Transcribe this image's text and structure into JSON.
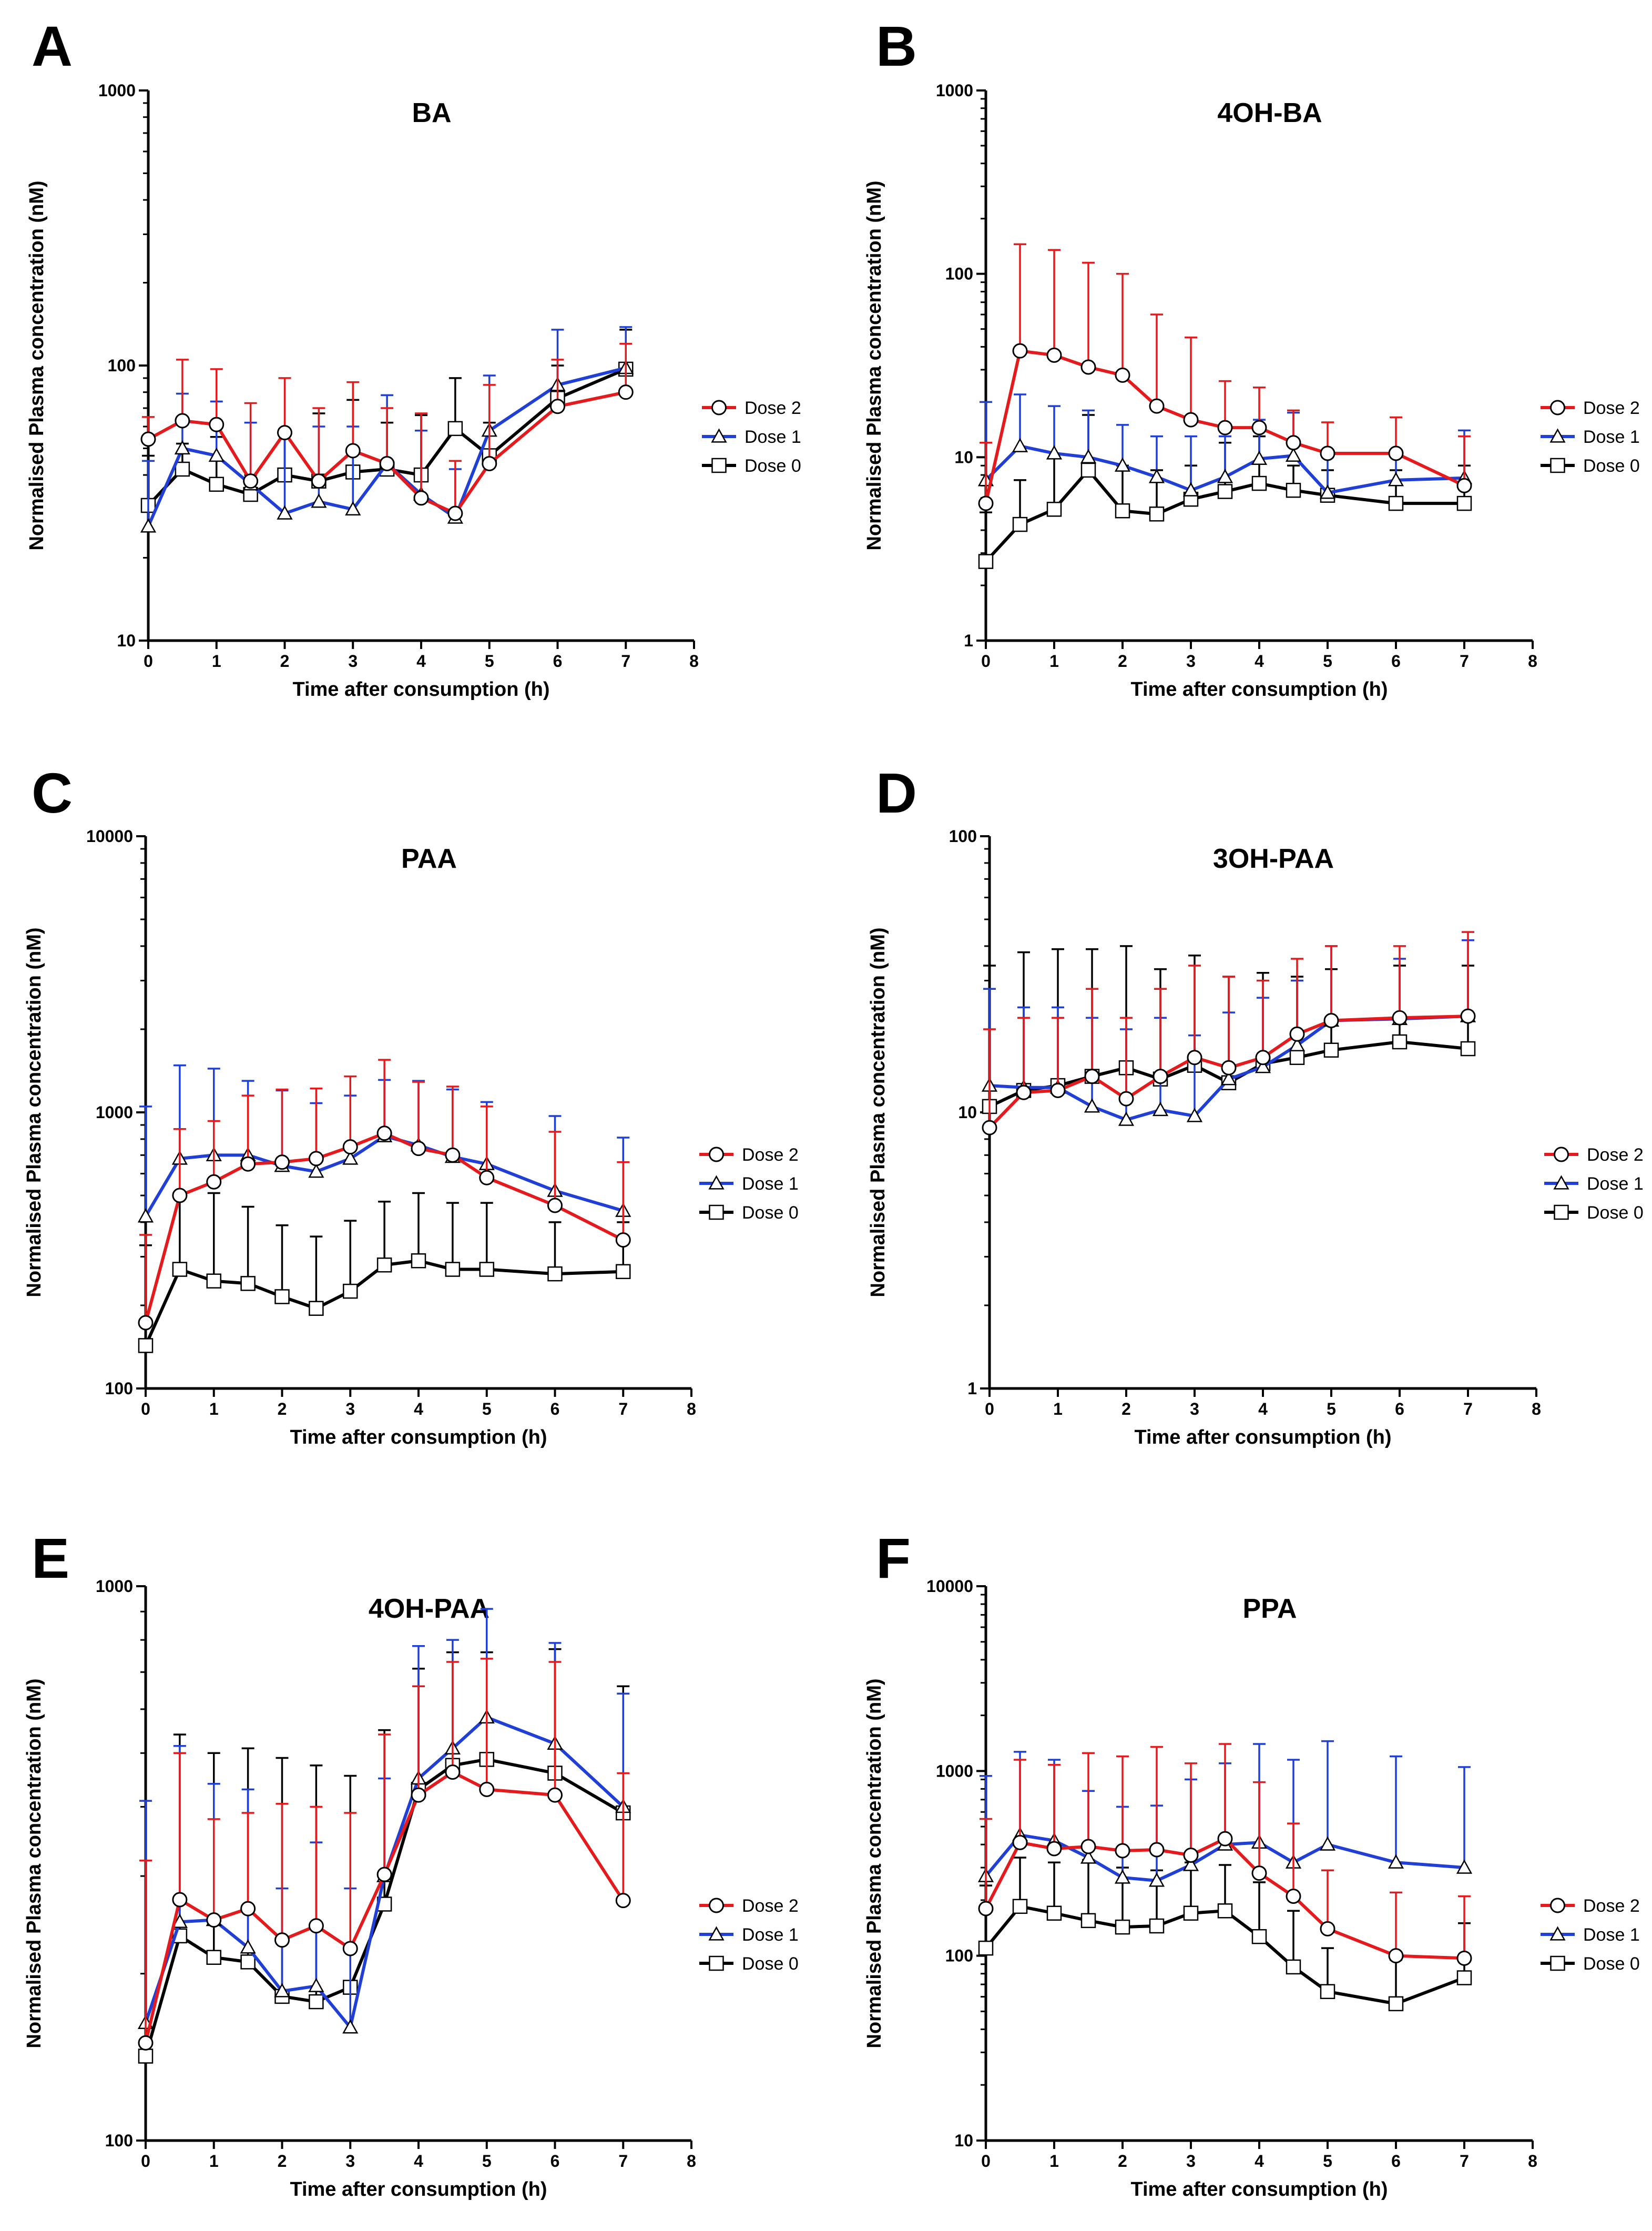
{
  "figure": {
    "legend_labels": [
      "Dose 2",
      "Dose 1",
      "Dose 0"
    ]
  },
  "chart_data": [
    {
      "panel": "A",
      "type": "line",
      "title": "BA",
      "xlabel": "Time after consumption (h)",
      "ylabel": "Normalised Plasma concentration (nM)",
      "xlim": [
        0,
        8
      ],
      "ylim": [
        10,
        1000
      ],
      "yscale": "log",
      "xticks": [
        0,
        1,
        2,
        3,
        4,
        5,
        6,
        7,
        8
      ],
      "yticks": [
        10,
        100,
        1000
      ],
      "yticklabels": [
        "10",
        "100",
        "1000"
      ],
      "legend": "right",
      "series": [
        {
          "name": "Dose 2",
          "color": "#e41a1c",
          "marker": "circle",
          "x": [
            0,
            0.5,
            1,
            1.5,
            2,
            2.5,
            3,
            3.5,
            4,
            4.5,
            5,
            6,
            7
          ],
          "y": [
            54,
            63,
            61,
            38,
            57,
            38,
            49,
            44,
            33,
            29,
            44,
            71,
            80
          ],
          "err": [
            65,
            105,
            97,
            73,
            90,
            70,
            87,
            70,
            67,
            45,
            85,
            105,
            120
          ]
        },
        {
          "name": "Dose 1",
          "color": "#1f3fd6",
          "marker": "triangle",
          "x": [
            0,
            0.5,
            1,
            1.5,
            2,
            2.5,
            3,
            3.5,
            4,
            4.5,
            5,
            6,
            7
          ],
          "y": [
            26,
            50,
            47,
            37,
            29,
            32,
            30,
            44,
            34,
            28,
            58,
            85,
            98
          ],
          "err": [
            45,
            79,
            74,
            62,
            58,
            60,
            60,
            78,
            58,
            42,
            92,
            135,
            138
          ]
        },
        {
          "name": "Dose 0",
          "color": "#000000",
          "marker": "square",
          "x": [
            0,
            0.5,
            1,
            1.5,
            2,
            2.5,
            3,
            3.5,
            4,
            4.5,
            5,
            6,
            7
          ],
          "y": [
            31,
            42,
            37,
            34,
            40,
            38,
            41,
            42,
            40,
            59,
            47,
            76,
            97
          ],
          "err": [
            47,
            52,
            55,
            40,
            58,
            67,
            75,
            62,
            66,
            90,
            62,
            100,
            135
          ]
        }
      ]
    },
    {
      "panel": "B",
      "type": "line",
      "title": "4OH-BA",
      "xlabel": "Time after consumption (h)",
      "ylabel": "Normalised Plasma concentration (nM)",
      "xlim": [
        0,
        8
      ],
      "ylim": [
        1,
        1000
      ],
      "yscale": "log",
      "xticks": [
        0,
        1,
        2,
        3,
        4,
        5,
        6,
        7,
        8
      ],
      "yticks": [
        1,
        10,
        100,
        1000
      ],
      "yticklabels": [
        "1",
        "10",
        "100",
        "1000"
      ],
      "legend": "right",
      "series": [
        {
          "name": "Dose 2",
          "color": "#e41a1c",
          "marker": "circle",
          "x": [
            0,
            0.5,
            1,
            1.5,
            2,
            2.5,
            3,
            3.5,
            4,
            4.5,
            5,
            6,
            7
          ],
          "y": [
            5.6,
            38,
            36,
            31,
            28,
            19,
            16,
            14.5,
            14.5,
            12,
            10.5,
            10.5,
            7
          ],
          "err": [
            12,
            145,
            135,
            115,
            100,
            60,
            45,
            26,
            24,
            18,
            15.5,
            16.5,
            13
          ]
        },
        {
          "name": "Dose 1",
          "color": "#1f3fd6",
          "marker": "triangle",
          "x": [
            0,
            0.5,
            1,
            1.5,
            2,
            2.5,
            3,
            3.5,
            4,
            4.5,
            5,
            6,
            7
          ],
          "y": [
            7.5,
            11.5,
            10.5,
            10,
            9,
            7.8,
            6.6,
            7.8,
            9.8,
            10.2,
            6.4,
            7.5,
            7.7
          ],
          "err": [
            20,
            22,
            19,
            18,
            15,
            13,
            13,
            13,
            16,
            17.5,
            10,
            10.5,
            14
          ]
        },
        {
          "name": "Dose 0",
          "color": "#000000",
          "marker": "square",
          "x": [
            0,
            0.5,
            1,
            1.5,
            2,
            2.5,
            3,
            3.5,
            4,
            4.5,
            5,
            6,
            7
          ],
          "y": [
            2.7,
            4.3,
            5.2,
            8.5,
            5.1,
            4.9,
            5.9,
            6.5,
            7.2,
            6.6,
            6.2,
            5.6,
            5.6
          ],
          "err": [
            5,
            7.5,
            10,
            17,
            9,
            8.5,
            9,
            12,
            13,
            9,
            8.5,
            8.5,
            9
          ]
        }
      ]
    },
    {
      "panel": "C",
      "type": "line",
      "title": "PAA",
      "xlabel": "Time after consumption (h)",
      "ylabel": "Normalised Plasma concentration (nM)",
      "xlim": [
        0,
        8
      ],
      "ylim": [
        100,
        10000
      ],
      "yscale": "log",
      "xticks": [
        0,
        1,
        2,
        3,
        4,
        5,
        6,
        7,
        8
      ],
      "yticks": [
        100,
        1000,
        10000
      ],
      "yticklabels": [
        "100",
        "1000",
        "10000"
      ],
      "legend": "right",
      "series": [
        {
          "name": "Dose 2",
          "color": "#e41a1c",
          "marker": "circle",
          "x": [
            0,
            0.5,
            1,
            1.5,
            2,
            2.5,
            3,
            3.5,
            4,
            4.5,
            5,
            6,
            7
          ],
          "y": [
            173,
            500,
            560,
            650,
            660,
            680,
            750,
            840,
            740,
            700,
            580,
            460,
            345
          ],
          "err": [
            360,
            870,
            930,
            1150,
            1210,
            1220,
            1350,
            1550,
            1290,
            1240,
            1050,
            850,
            660
          ]
        },
        {
          "name": "Dose 1",
          "color": "#1f3fd6",
          "marker": "triangle",
          "x": [
            0,
            0.5,
            1,
            1.5,
            2,
            2.5,
            3,
            3.5,
            4,
            4.5,
            5,
            6,
            7
          ],
          "y": [
            420,
            680,
            700,
            700,
            640,
            610,
            680,
            820,
            760,
            690,
            650,
            520,
            440
          ],
          "err": [
            1050,
            1480,
            1440,
            1300,
            1200,
            1080,
            1150,
            1310,
            1300,
            1210,
            1090,
            970,
            810
          ]
        },
        {
          "name": "Dose 0",
          "color": "#000000",
          "marker": "square",
          "x": [
            0,
            0.5,
            1,
            1.5,
            2,
            2.5,
            3,
            3.5,
            4,
            4.5,
            5,
            6,
            7
          ],
          "y": [
            143,
            270,
            245,
            240,
            215,
            195,
            225,
            280,
            290,
            270,
            270,
            260,
            265
          ],
          "err": [
            330,
            510,
            510,
            455,
            390,
            355,
            405,
            475,
            510,
            470,
            470,
            400,
            400
          ]
        }
      ]
    },
    {
      "panel": "D",
      "type": "line",
      "title": "3OH-PAA",
      "xlabel": "Time after consumption (h)",
      "ylabel": "Normalised Plasma concentration (nM)",
      "xlim": [
        0,
        8
      ],
      "ylim": [
        1,
        100
      ],
      "yscale": "log",
      "xticks": [
        0,
        1,
        2,
        3,
        4,
        5,
        6,
        7,
        8
      ],
      "yticks": [
        1,
        10,
        100
      ],
      "yticklabels": [
        "1",
        "10",
        "100"
      ],
      "legend": "right",
      "series": [
        {
          "name": "Dose 2",
          "color": "#e41a1c",
          "marker": "circle",
          "x": [
            0,
            0.5,
            1,
            1.5,
            2,
            2.5,
            3,
            3.5,
            4,
            4.5,
            5,
            6,
            7
          ],
          "y": [
            8.8,
            11.8,
            12,
            13.5,
            11.2,
            13.5,
            15.8,
            14.5,
            15.8,
            19.2,
            21.5,
            22,
            22.3
          ],
          "err": [
            20,
            22,
            22,
            28,
            22,
            28,
            34,
            31,
            30,
            36,
            40,
            40,
            45
          ]
        },
        {
          "name": "Dose 1",
          "color": "#1f3fd6",
          "marker": "triangle",
          "x": [
            0,
            0.5,
            1,
            1.5,
            2,
            2.5,
            3,
            3.5,
            4,
            4.5,
            5,
            6,
            7
          ],
          "y": [
            12.5,
            12.3,
            12.3,
            10.5,
            9.4,
            10.2,
            9.7,
            13.2,
            14.6,
            17.5,
            21.5,
            21.8,
            22.3
          ],
          "err": [
            28,
            24,
            24,
            22,
            20,
            22,
            19,
            23,
            26,
            30,
            40,
            36,
            42
          ]
        },
        {
          "name": "Dose 0",
          "color": "#000000",
          "marker": "square",
          "x": [
            0,
            0.5,
            1,
            1.5,
            2,
            2.5,
            3,
            3.5,
            4,
            4.5,
            5,
            6,
            7
          ],
          "y": [
            10.5,
            12,
            12.5,
            13.5,
            14.5,
            13.2,
            14.8,
            12.8,
            15,
            15.8,
            16.8,
            18,
            17
          ],
          "err": [
            34,
            38,
            39,
            39,
            40,
            33,
            37,
            31,
            32,
            31,
            33,
            34,
            34
          ]
        }
      ]
    },
    {
      "panel": "E",
      "type": "line",
      "title": "4OH-PAA",
      "xlabel": "Time after consumption (h)",
      "ylabel": "Normalised Plasma concentration (nM)",
      "xlim": [
        0,
        8
      ],
      "ylim": [
        100,
        1000
      ],
      "yscale": "log",
      "xticks": [
        0,
        1,
        2,
        3,
        4,
        5,
        6,
        7,
        8
      ],
      "yticks": [
        100,
        1000
      ],
      "yticklabels": [
        "100",
        "1000"
      ],
      "legend": "right",
      "series": [
        {
          "name": "Dose 2",
          "color": "#e41a1c",
          "marker": "circle",
          "x": [
            0,
            0.5,
            1,
            1.5,
            2,
            2.5,
            3,
            3.5,
            4,
            4.5,
            5,
            6,
            7
          ],
          "y": [
            150,
            272,
            250,
            262,
            230,
            244,
            222,
            302,
            420,
            462,
            430,
            420,
            271
          ],
          "err": [
            320,
            500,
            380,
            390,
            405,
            400,
            390,
            540,
            660,
            730,
            740,
            730,
            460
          ]
        },
        {
          "name": "Dose 1",
          "color": "#1f3fd6",
          "marker": "triangle",
          "x": [
            0,
            0.5,
            1,
            1.5,
            2,
            2.5,
            3,
            3.5,
            4,
            4.5,
            5,
            6,
            7
          ],
          "y": [
            163,
            248,
            250,
            223,
            186,
            190,
            160,
            300,
            450,
            510,
            580,
            520,
            400
          ],
          "err": [
            410,
            515,
            440,
            430,
            285,
            345,
            285,
            450,
            780,
            800,
            910,
            790,
            640
          ]
        },
        {
          "name": "Dose 0",
          "color": "#000000",
          "marker": "square",
          "x": [
            0,
            0.5,
            1,
            1.5,
            2,
            2.5,
            3,
            3.5,
            4,
            4.5,
            5,
            6,
            7
          ],
          "y": [
            142,
            234,
            214,
            210,
            182,
            178,
            189,
            267,
            430,
            475,
            487,
            460,
            390
          ],
          "err": [
            140,
            540,
            500,
            510,
            490,
            475,
            455,
            550,
            710,
            760,
            760,
            770,
            660
          ]
        }
      ]
    },
    {
      "panel": "F",
      "type": "line",
      "title": "PPA",
      "xlabel": "Time after consumption (h)",
      "ylabel": "Normalised Plasma concentration (nM)",
      "xlim": [
        0,
        8
      ],
      "ylim": [
        10,
        10000
      ],
      "yscale": "log",
      "xticks": [
        0,
        1,
        2,
        3,
        4,
        5,
        6,
        7,
        8
      ],
      "yticks": [
        10,
        100,
        1000,
        10000
      ],
      "yticklabels": [
        "10",
        "100",
        "1000",
        "10000"
      ],
      "legend": "right",
      "series": [
        {
          "name": "Dose 2",
          "color": "#e41a1c",
          "marker": "circle",
          "x": [
            0,
            0.5,
            1,
            1.5,
            2,
            2.5,
            3,
            3.5,
            4,
            4.5,
            5,
            6,
            7
          ],
          "y": [
            180,
            410,
            380,
            390,
            370,
            375,
            350,
            430,
            280,
            210,
            140,
            100,
            97
          ],
          "err": [
            550,
            1150,
            1080,
            1250,
            1200,
            1350,
            1100,
            1400,
            870,
            520,
            290,
            220,
            210
          ]
        },
        {
          "name": "Dose 1",
          "color": "#1f3fd6",
          "marker": "triangle",
          "x": [
            0,
            0.5,
            1,
            1.5,
            2,
            2.5,
            3,
            3.5,
            4,
            4.5,
            5,
            6,
            7
          ],
          "y": [
            270,
            450,
            420,
            340,
            265,
            255,
            310,
            400,
            410,
            320,
            400,
            320,
            300
          ],
          "err": [
            940,
            1270,
            1150,
            780,
            640,
            650,
            900,
            1100,
            1400,
            1150,
            1450,
            1200,
            1050
          ]
        },
        {
          "name": "Dose 0",
          "color": "#000000",
          "marker": "square",
          "x": [
            0,
            0.5,
            1,
            1.5,
            2,
            2.5,
            3,
            3.5,
            4,
            4.5,
            5,
            6,
            7
          ],
          "y": [
            110,
            185,
            170,
            155,
            143,
            145,
            170,
            175,
            127,
            87,
            64,
            55,
            76
          ],
          "err": [
            240,
            340,
            320,
            330,
            300,
            290,
            320,
            310,
            250,
            175,
            110,
            95,
            150
          ]
        }
      ]
    }
  ]
}
